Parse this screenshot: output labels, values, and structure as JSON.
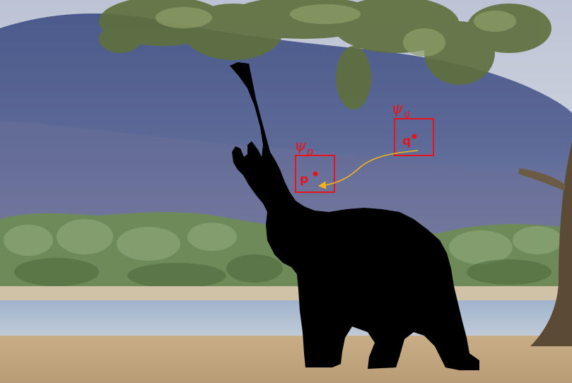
{
  "figure": {
    "patches": [
      {
        "id": "q",
        "symbol": "ψ",
        "subscript": "q",
        "point_label": "q"
      },
      {
        "id": "p",
        "symbol": "ψ",
        "subscript": "p",
        "point_label": "p"
      }
    ],
    "arrow": {
      "from": "q",
      "to": "p"
    },
    "colors": {
      "annotation": "#e8141b",
      "arrow": "#f2b51c",
      "silhouette": "#000000",
      "mountain": "#5c6b9a",
      "sky": "#c9cdd8",
      "foliage": "#6d8a55",
      "water": "#a9bcd2",
      "ground": "#c9b08a"
    }
  }
}
